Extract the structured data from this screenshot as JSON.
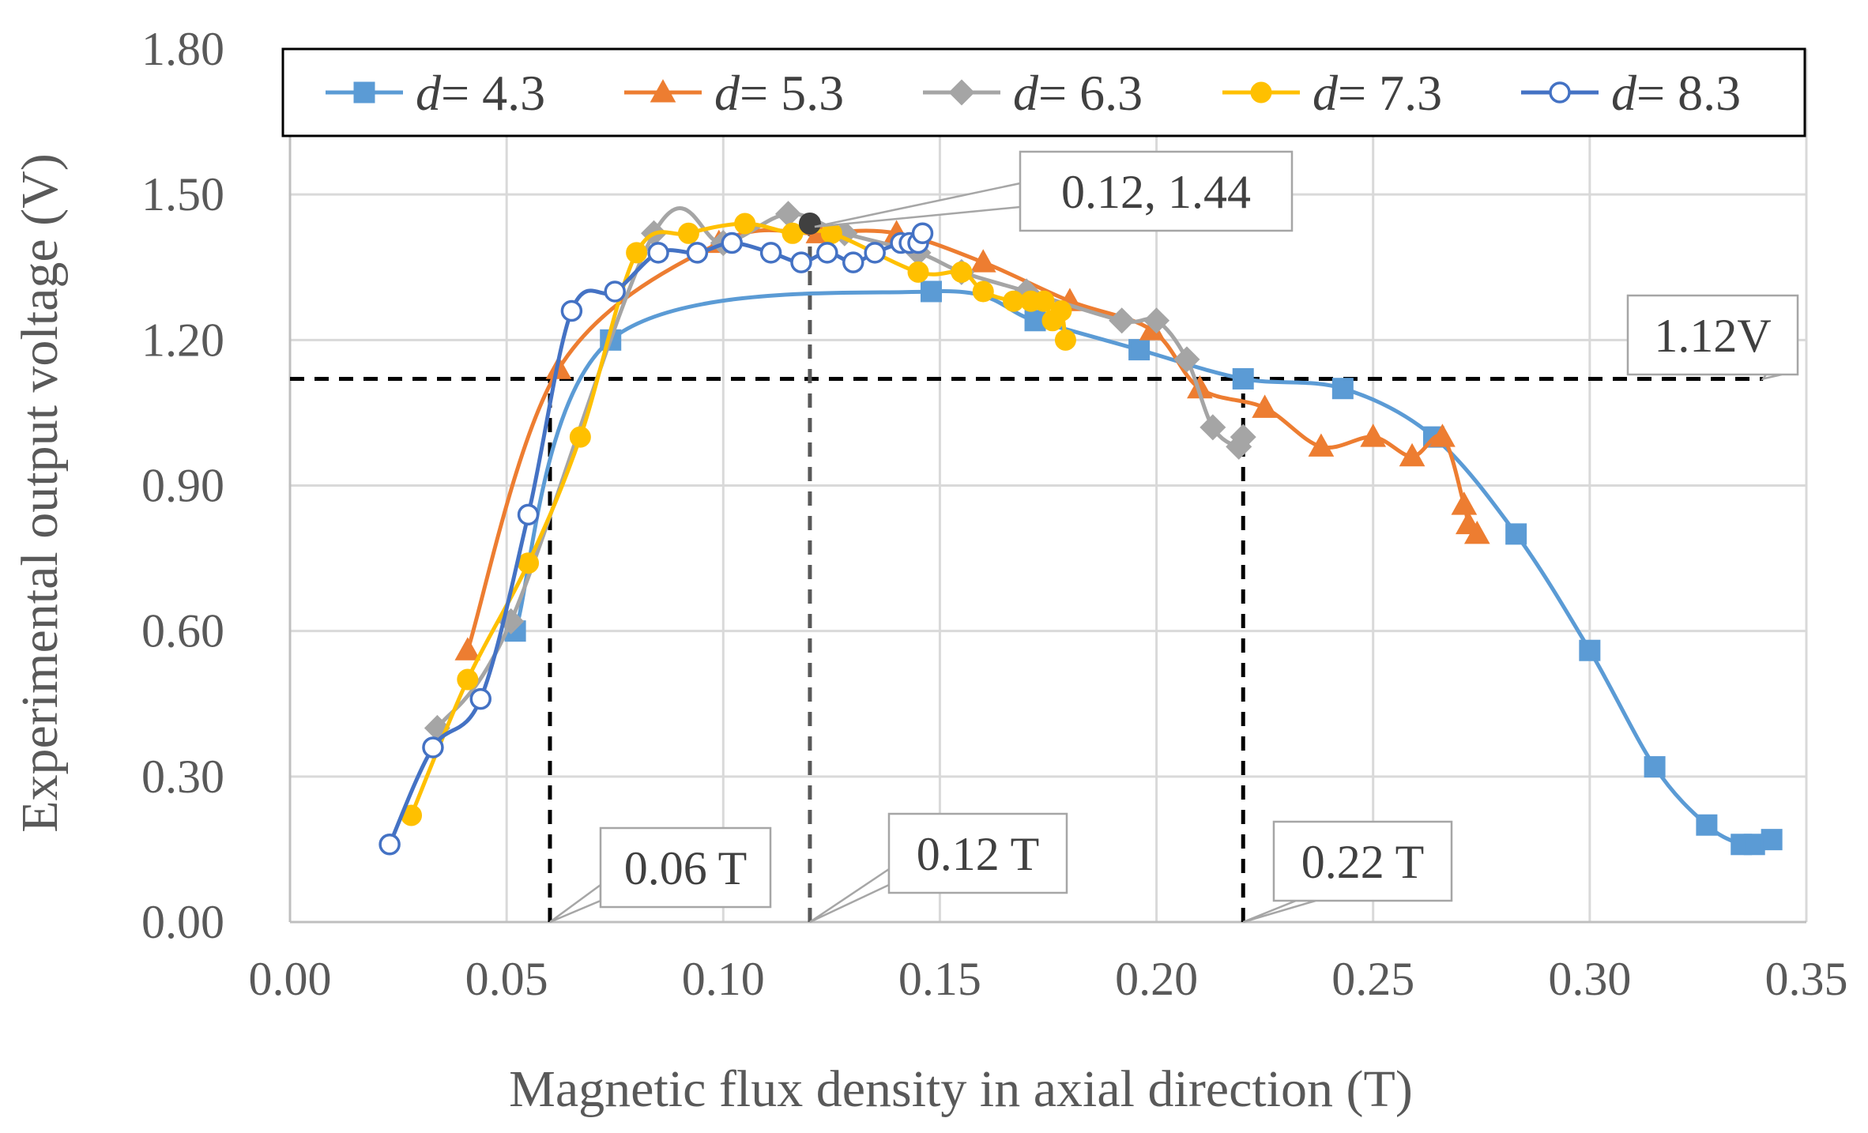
{
  "chart_data": {
    "type": "line",
    "title": "",
    "xlabel": "Magnetic flux density in axial direction (T)",
    "ylabel": "Experimental output voltage (V)",
    "xlim": [
      0,
      0.35
    ],
    "ylim": [
      0,
      1.8
    ],
    "x_ticks": [
      "0.00",
      "0.05",
      "0.10",
      "0.15",
      "0.20",
      "0.25",
      "0.30",
      "0.35"
    ],
    "y_ticks": [
      "0.00",
      "0.30",
      "0.60",
      "0.90",
      "1.20",
      "1.50",
      "1.80"
    ],
    "x_tick_values": [
      0,
      0.05,
      0.1,
      0.15,
      0.2,
      0.25,
      0.3,
      0.35
    ],
    "y_tick_values": [
      0,
      0.3,
      0.6,
      0.9,
      1.2,
      1.5,
      1.8
    ],
    "grid": true,
    "legend_position": "top",
    "legend_label_prefix": "d",
    "series": [
      {
        "name": "d = 4.3",
        "value_label": "= 4.3",
        "color": "#5B9BD5",
        "marker": "square",
        "filled": true,
        "x": [
          0.052,
          0.074,
          0.148,
          0.172,
          0.196,
          0.22,
          0.243,
          0.264,
          0.283,
          0.3,
          0.315,
          0.327,
          0.335,
          0.338,
          0.342
        ],
        "y": [
          0.6,
          1.2,
          1.3,
          1.24,
          1.18,
          1.12,
          1.1,
          1.0,
          0.8,
          0.56,
          0.32,
          0.2,
          0.16,
          0.16,
          0.17
        ]
      },
      {
        "name": "d = 5.3",
        "value_label": "= 5.3",
        "color": "#ED7D31",
        "marker": "triangle",
        "filled": true,
        "x": [
          0.041,
          0.062,
          0.099,
          0.122,
          0.14,
          0.16,
          0.18,
          0.199,
          0.21,
          0.225,
          0.238,
          0.25,
          0.259,
          0.266,
          0.271,
          0.272,
          0.274
        ],
        "y": [
          0.56,
          1.14,
          1.4,
          1.42,
          1.42,
          1.36,
          1.28,
          1.22,
          1.1,
          1.06,
          0.98,
          1.0,
          0.96,
          1.0,
          0.86,
          0.82,
          0.8
        ]
      },
      {
        "name": "d = 6.3",
        "value_label": "= 6.3",
        "color": "#A5A5A5",
        "marker": "diamond",
        "filled": true,
        "x": [
          0.034,
          0.051,
          0.084,
          0.1,
          0.115,
          0.128,
          0.145,
          0.155,
          0.17,
          0.192,
          0.2,
          0.207,
          0.213,
          0.219,
          0.22
        ],
        "y": [
          0.4,
          0.62,
          1.42,
          1.4,
          1.46,
          1.42,
          1.38,
          1.34,
          1.3,
          1.24,
          1.24,
          1.16,
          1.02,
          0.98,
          1.0
        ]
      },
      {
        "name": "d = 7.3",
        "value_label": "= 7.3",
        "color": "#FFC000",
        "marker": "circle",
        "filled": true,
        "x": [
          0.028,
          0.041,
          0.055,
          0.067,
          0.08,
          0.092,
          0.105,
          0.116,
          0.125,
          0.145,
          0.155,
          0.16,
          0.167,
          0.171,
          0.174,
          0.176,
          0.178,
          0.179
        ],
        "y": [
          0.22,
          0.5,
          0.74,
          1.0,
          1.38,
          1.42,
          1.44,
          1.42,
          1.42,
          1.34,
          1.34,
          1.3,
          1.28,
          1.28,
          1.28,
          1.24,
          1.26,
          1.2
        ]
      },
      {
        "name": "d = 8.3",
        "value_label": "= 8.3",
        "color": "#4472C4",
        "marker": "circle",
        "filled": false,
        "x": [
          0.023,
          0.033,
          0.044,
          0.055,
          0.065,
          0.075,
          0.085,
          0.094,
          0.102,
          0.111,
          0.118,
          0.124,
          0.13,
          0.135,
          0.141,
          0.143,
          0.145,
          0.146
        ],
        "y": [
          0.16,
          0.36,
          0.46,
          0.84,
          1.26,
          1.3,
          1.38,
          1.38,
          1.4,
          1.38,
          1.36,
          1.38,
          1.36,
          1.38,
          1.4,
          1.4,
          1.4,
          1.42
        ]
      }
    ],
    "reference_lines": [
      {
        "orientation": "horizontal",
        "value": 1.12,
        "x_range": [
          0,
          0.34
        ],
        "label": "1.12V",
        "color": "#000000"
      },
      {
        "orientation": "vertical",
        "value": 0.06,
        "y_range": [
          0,
          1.12
        ],
        "label": "0.06 T",
        "color": "#000000"
      },
      {
        "orientation": "vertical",
        "value": 0.12,
        "y_range": [
          0,
          1.44
        ],
        "label": "0.12 T",
        "color": "#595959"
      },
      {
        "orientation": "vertical",
        "value": 0.22,
        "y_range": [
          0,
          1.12
        ],
        "label": "0.22 T",
        "color": "#000000"
      }
    ],
    "annotations": [
      {
        "text": "0.12, 1.44",
        "x": 0.12,
        "y": 1.44
      }
    ]
  }
}
